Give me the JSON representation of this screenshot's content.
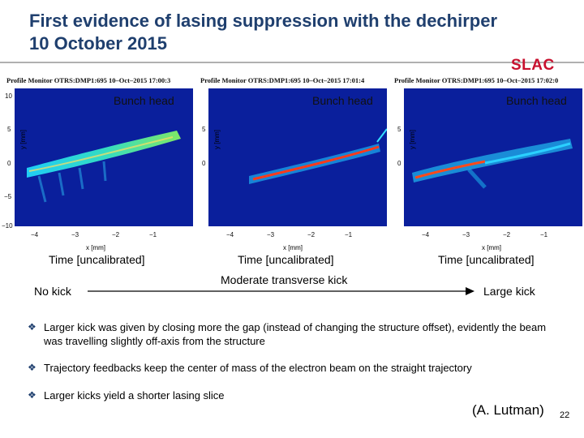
{
  "slide": {
    "title_line1": "First evidence of lasing suppression with the dechirper",
    "title_line2": "10 October 2015",
    "logo": "SLAC",
    "credit": "(A. Lutman)",
    "page_number": "22"
  },
  "panels": [
    {
      "header": "Profile Monitor OTRS:DMP1:695 10–Oct–2015 17:00:3",
      "bunch_label": "Bunch head",
      "x_axis_label": "x [mm]",
      "y_axis_label": "y [mm]",
      "time_label": "Time [uncalibrated]"
    },
    {
      "header": "Profile Monitor OTRS:DMP1:695 10–Oct–2015 17:01:4",
      "bunch_label": "Bunch head",
      "x_axis_label": "x [mm]",
      "y_axis_label": "y [mm]",
      "time_label": "Time [uncalibrated]"
    },
    {
      "header": "Profile Monitor OTRS:DMP1:695 10–Oct–2015 17:02:0",
      "bunch_label": "Bunch head",
      "x_axis_label": "x [mm]",
      "y_axis_label": "y [mm]",
      "time_label": "Time [uncalibrated]"
    }
  ],
  "axes": {
    "x_ticks": [
      "−4",
      "−3",
      "−2",
      "−1"
    ],
    "y_ticks": [
      "10",
      "5",
      "0",
      "−5",
      "−10"
    ]
  },
  "kick_labels": {
    "left": "No kick",
    "middle": "Moderate transverse kick",
    "right": "Large kick"
  },
  "bullets": [
    "Larger kick was given by closing more the gap (instead of changing the structure offset), evidently the beam was travelling slightly off-axis from the structure",
    "Trajectory feedbacks keep the center of mass of the electron beam on the straight trajectory",
    "Larger kicks yield a shorter lasing slice"
  ],
  "colors": {
    "title": "#1f3f6e",
    "logo": "#c8102e",
    "plot_background": "#0a1f9c"
  }
}
